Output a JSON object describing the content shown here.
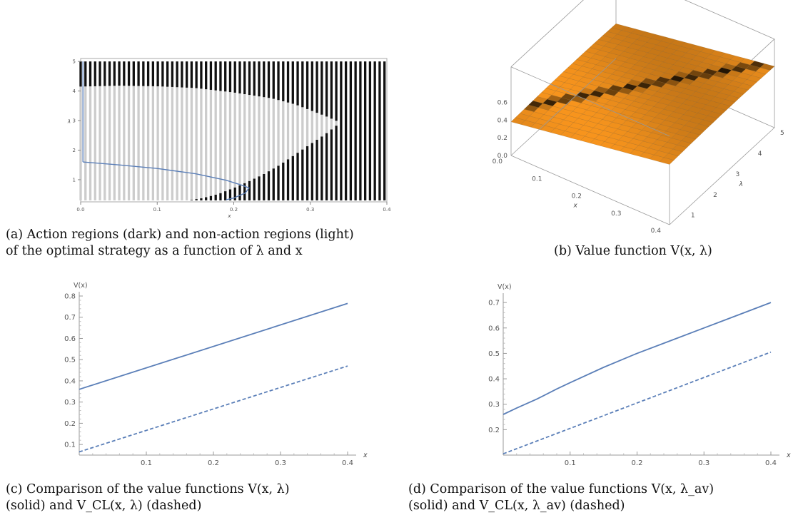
{
  "captions": {
    "a": [
      "(a) Action regions (dark) and non-action regions (light)",
      "of the optimal strategy as a function of λ and x"
    ],
    "b": [
      "(b) Value function V(x, λ)"
    ],
    "c": [
      "(c) Comparison of the value functions V(x, λ)",
      "(solid) and V_CL(x, λ) (dashed)"
    ],
    "d": [
      "(d) Comparison of the value functions V(x, λ_av)",
      "(solid) and V_CL(x, λ_av) (dashed)"
    ]
  },
  "chart_data": [
    {
      "id": "a",
      "type": "scatter",
      "xlabel": "x",
      "ylabel": "λ",
      "xlim": [
        0,
        0.4
      ],
      "ylim": [
        0.25,
        5.1
      ],
      "xticks": [
        "0.0",
        "0.1",
        "0.2",
        "0.3",
        "0.4"
      ],
      "xtick_values": [
        0,
        0.1,
        0.2,
        0.3,
        0.4
      ],
      "yticks": [
        "1",
        "2",
        "3",
        "4",
        "5"
      ],
      "ytick_values": [
        1,
        2,
        3,
        4,
        5
      ],
      "dark_color": "#111111",
      "light_color": "#cccccc",
      "curve_color": "#5b7fb8",
      "grid_x": {
        "start": 0.0,
        "step": 0.0063,
        "count": 64
      },
      "grid_lambda": {
        "min": 0.3,
        "max": 5.0
      },
      "boundary_upper": [
        [
          0.0,
          4.15
        ],
        [
          0.05,
          4.18
        ],
        [
          0.1,
          4.16
        ],
        [
          0.15,
          4.1
        ],
        [
          0.2,
          3.95
        ],
        [
          0.25,
          3.75
        ],
        [
          0.28,
          3.55
        ],
        [
          0.3,
          3.35
        ],
        [
          0.32,
          3.15
        ],
        [
          0.335,
          2.98
        ],
        [
          0.34,
          2.95
        ]
      ],
      "boundary_lower": [
        [
          0.0,
          0.3
        ],
        [
          0.14,
          0.3
        ],
        [
          0.16,
          0.38
        ],
        [
          0.18,
          0.52
        ],
        [
          0.2,
          0.72
        ],
        [
          0.22,
          0.95
        ],
        [
          0.24,
          1.2
        ],
        [
          0.26,
          1.5
        ],
        [
          0.28,
          1.85
        ],
        [
          0.3,
          2.2
        ],
        [
          0.32,
          2.55
        ],
        [
          0.335,
          2.85
        ],
        [
          0.34,
          2.95
        ]
      ],
      "curve_vertical": [
        [
          0.003,
          5.0
        ],
        [
          0.003,
          1.6
        ]
      ],
      "curve_main": [
        [
          0.003,
          1.6
        ],
        [
          0.05,
          1.5
        ],
        [
          0.1,
          1.38
        ],
        [
          0.15,
          1.2
        ],
        [
          0.19,
          0.98
        ],
        [
          0.21,
          0.82
        ],
        [
          0.22,
          0.72
        ],
        [
          0.215,
          0.55
        ],
        [
          0.2,
          0.38
        ],
        [
          0.19,
          0.32
        ]
      ]
    },
    {
      "id": "b",
      "type": "area",
      "xlabel": "x",
      "ylabel": "λ",
      "xlim": [
        0,
        0.4
      ],
      "ylim": [
        0.3,
        5
      ],
      "zlim": [
        0,
        0.7
      ],
      "xticks": [
        "0.0",
        "0.1",
        "0.2",
        "0.3",
        "0.4"
      ],
      "yticks": [
        "1",
        "2",
        "3",
        "4",
        "5"
      ],
      "zticks": [
        "0.0",
        "0.2",
        "0.4",
        "0.6"
      ],
      "surface_color": "#f7941d",
      "surface_range": {
        "at_x_0": 0.38,
        "at_x_0.4": 0.68
      }
    },
    {
      "id": "c",
      "type": "line",
      "xlabel": "x",
      "ylabel": "V(x)",
      "xlim": [
        0,
        0.4
      ],
      "ylim": [
        0.05,
        0.8
      ],
      "xticks": [
        "0.1",
        "0.2",
        "0.3",
        "0.4"
      ],
      "xtick_values": [
        0.1,
        0.2,
        0.3,
        0.4
      ],
      "yticks": [
        "0.1",
        "0.2",
        "0.3",
        "0.4",
        "0.5",
        "0.6",
        "0.7",
        "0.8"
      ],
      "ytick_values": [
        0.1,
        0.2,
        0.3,
        0.4,
        0.5,
        0.6,
        0.7,
        0.8
      ],
      "series": [
        {
          "style": "solid",
          "color": "#5b7fb8",
          "x": [
            0,
            0.4
          ],
          "y": [
            0.36,
            0.765
          ]
        },
        {
          "style": "dashed",
          "color": "#5b7fb8",
          "x": [
            0,
            0.4
          ],
          "y": [
            0.065,
            0.47
          ]
        }
      ]
    },
    {
      "id": "d",
      "type": "line",
      "xlabel": "x",
      "ylabel": "V(x)",
      "xlim": [
        0,
        0.4
      ],
      "ylim": [
        0.1,
        0.72
      ],
      "xticks": [
        "0.1",
        "0.2",
        "0.3",
        "0.4"
      ],
      "xtick_values": [
        0.1,
        0.2,
        0.3,
        0.4
      ],
      "yticks": [
        "0.2",
        "0.3",
        "0.4",
        "0.5",
        "0.6",
        "0.7"
      ],
      "ytick_values": [
        0.2,
        0.3,
        0.4,
        0.5,
        0.6,
        0.7
      ],
      "series": [
        {
          "style": "solid",
          "color": "#5b7fb8",
          "x": [
            0,
            0.02,
            0.05,
            0.08,
            0.1,
            0.15,
            0.2,
            0.25,
            0.3,
            0.35,
            0.4
          ],
          "y": [
            0.26,
            0.285,
            0.32,
            0.36,
            0.385,
            0.445,
            0.5,
            0.55,
            0.6,
            0.65,
            0.7
          ]
        },
        {
          "style": "dashed",
          "color": "#5b7fb8",
          "x": [
            0,
            0.4
          ],
          "y": [
            0.105,
            0.505
          ]
        }
      ]
    }
  ]
}
